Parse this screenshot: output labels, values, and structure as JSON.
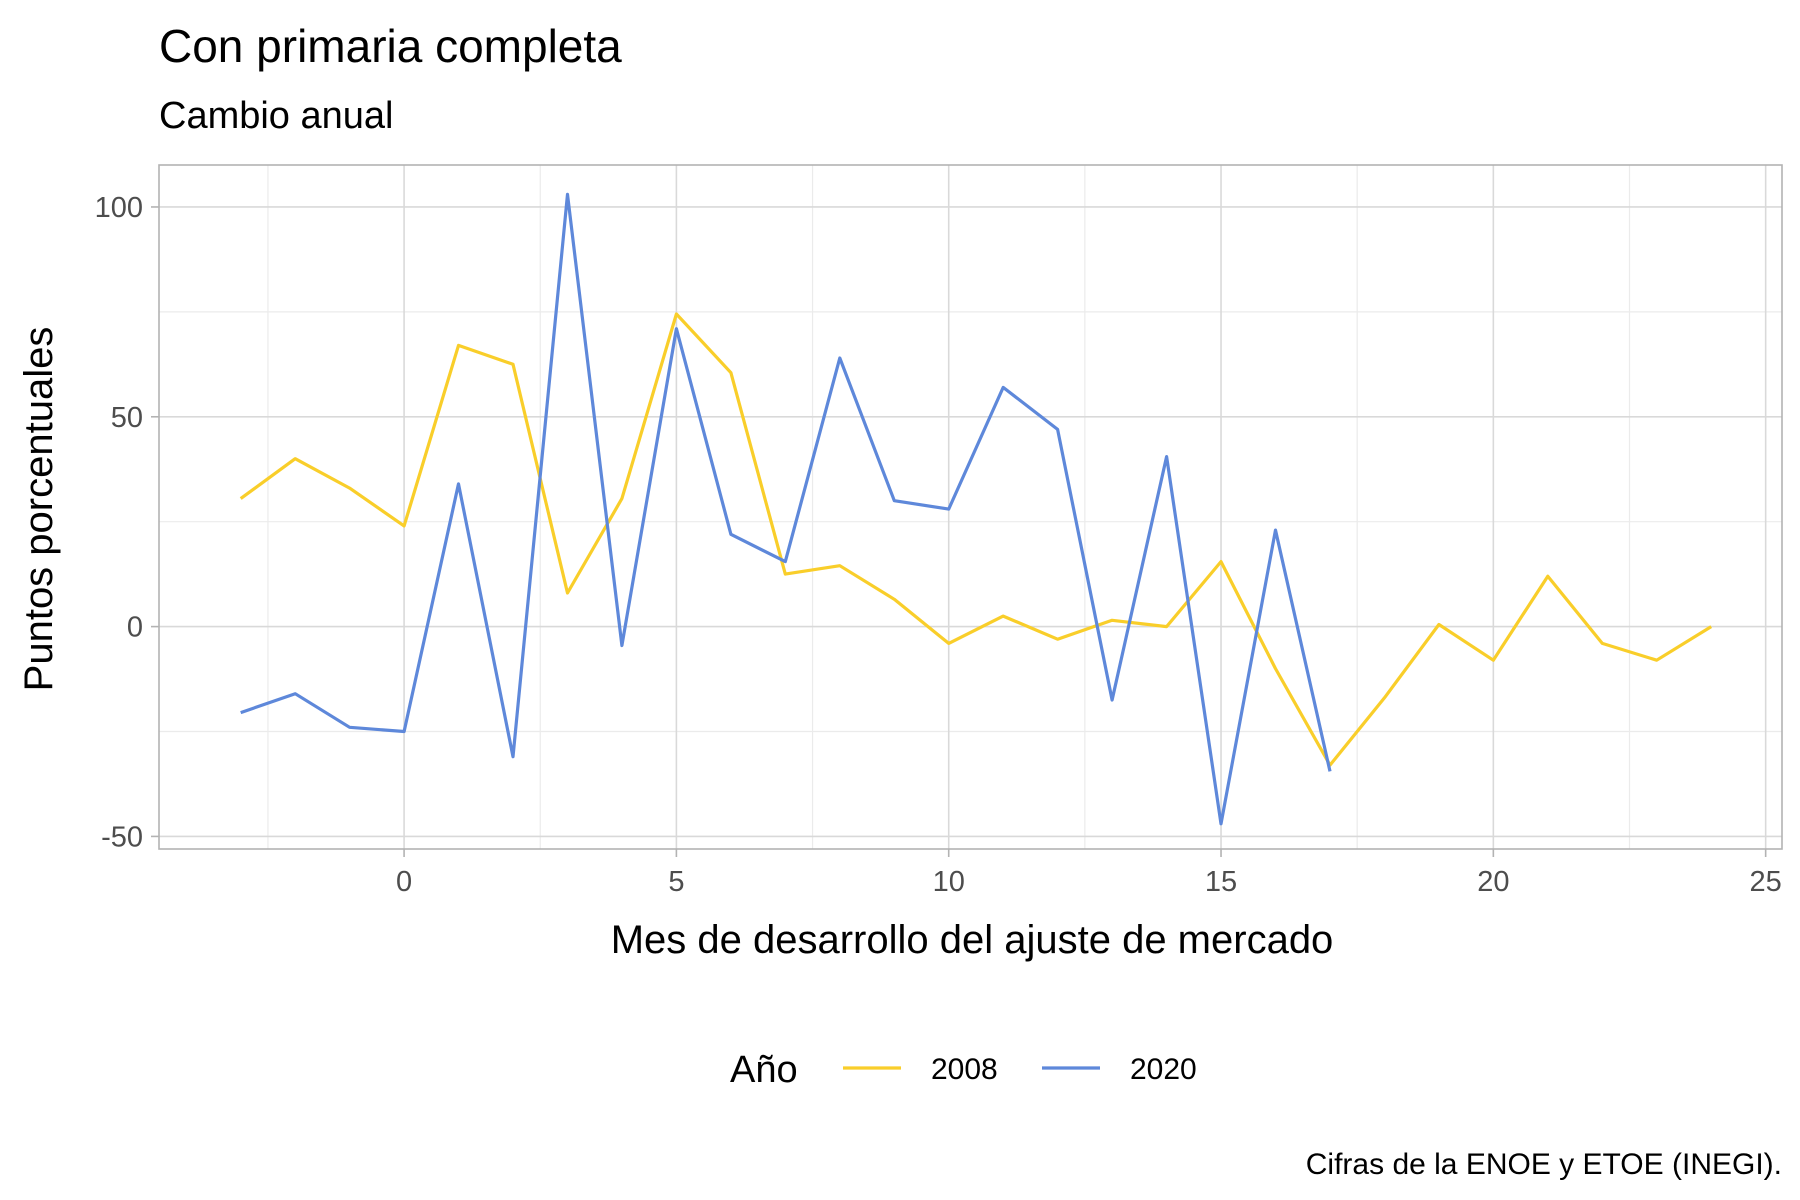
{
  "chart_data": {
    "type": "line",
    "title": "Con primaria completa",
    "subtitle": "Cambio anual",
    "xlabel": "Mes de desarrollo del ajuste de mercado",
    "ylabel": "Puntos porcentuales",
    "caption": "Cifras de la ENOE y ETOE (INEGI).",
    "xlim": [
      -4.5,
      25.3
    ],
    "ylim": [
      -53,
      110
    ],
    "x_ticks": [
      0,
      5,
      10,
      15,
      20,
      25
    ],
    "y_ticks": [
      -50,
      0,
      50,
      100
    ],
    "grid": true,
    "legend": {
      "title": "Año",
      "position": "bottom"
    },
    "series": [
      {
        "name": "2008",
        "color": "#F9CE2A",
        "x": [
          -3,
          -2,
          -1,
          0,
          1,
          2,
          3,
          4,
          5,
          6,
          7,
          8,
          9,
          10,
          11,
          12,
          13,
          14,
          15,
          16,
          17,
          18,
          19,
          20,
          21,
          22,
          23,
          24
        ],
        "values": [
          30.5,
          40,
          33,
          24,
          67,
          62.5,
          8,
          30.5,
          74.5,
          60.5,
          12.5,
          14.5,
          6.5,
          -4,
          2.5,
          -3,
          1.5,
          0,
          15.5,
          -10,
          -33,
          -17,
          0.5,
          -8,
          12,
          -4,
          -8,
          0
        ]
      },
      {
        "name": "2020",
        "color": "#5E88DA",
        "x": [
          -3,
          -2,
          -1,
          0,
          1,
          2,
          3,
          4,
          5,
          6,
          7,
          8,
          9,
          10,
          11,
          12,
          13,
          14,
          15,
          16,
          17
        ],
        "values": [
          -20.5,
          -16,
          -24,
          -25,
          34,
          -31,
          103,
          -4.5,
          71,
          22,
          15.5,
          64,
          30,
          28,
          57,
          47,
          -17.5,
          40.5,
          -47,
          23,
          -34.5
        ]
      }
    ]
  }
}
